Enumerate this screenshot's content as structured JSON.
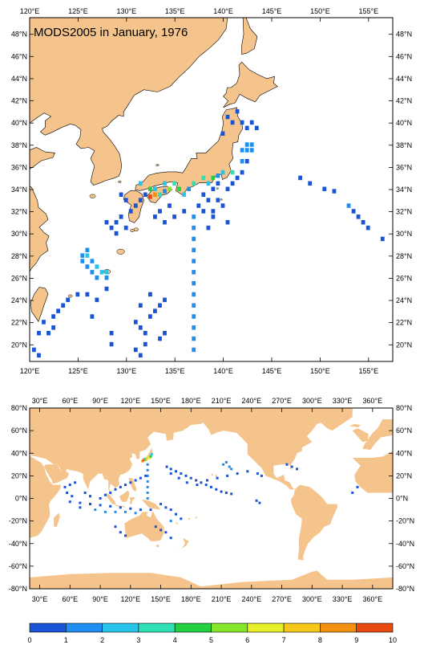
{
  "colors": {
    "land": "#f4c48c",
    "ocean": "#ffffff",
    "frame": "#000000",
    "scale": [
      "#1a54d6",
      "#1e8ff0",
      "#26c4ea",
      "#2ee0b4",
      "#22d040",
      "#86e62a",
      "#e8f02c",
      "#f6c81a",
      "#f49010",
      "#e84a10"
    ]
  },
  "title": "MODS2005 in January, 1976",
  "regional_map": {
    "lon_ticks": [
      "120°E",
      "125°E",
      "130°E",
      "135°E",
      "140°E",
      "145°E",
      "150°E",
      "155°E"
    ],
    "lat_ticks": [
      "48°N",
      "46°N",
      "44°N",
      "42°N",
      "40°N",
      "38°N",
      "36°N",
      "34°N",
      "32°N",
      "30°N",
      "28°N",
      "26°N",
      "24°N",
      "22°N",
      "20°N"
    ],
    "lon_values": [
      120,
      125,
      130,
      135,
      140,
      145,
      150,
      155
    ],
    "lat_values": [
      48,
      46,
      44,
      42,
      40,
      38,
      36,
      34,
      32,
      30,
      28,
      26,
      24,
      22,
      20
    ],
    "lon_range": [
      120,
      157.5
    ],
    "lat_range": [
      18.5,
      49.5
    ]
  },
  "global_map": {
    "lon_ticks": [
      "30°E",
      "60°E",
      "90°E",
      "120°E",
      "150°E",
      "180°E",
      "210°E",
      "240°E",
      "270°E",
      "300°E",
      "330°E",
      "360°E"
    ],
    "lat_ticks": [
      "80°N",
      "60°N",
      "40°N",
      "20°N",
      "0°N",
      "-20°N",
      "-40°N",
      "-60°N",
      "-80°N"
    ],
    "lon_values": [
      30,
      60,
      90,
      120,
      150,
      180,
      210,
      240,
      270,
      300,
      330,
      360
    ],
    "lat_values": [
      80,
      60,
      40,
      20,
      0,
      -20,
      -40,
      -60,
      -80
    ],
    "lon_range": [
      20,
      380
    ],
    "lat_range": [
      -80,
      80
    ]
  },
  "colorbar": {
    "labels": [
      "0",
      "1",
      "2",
      "3",
      "4",
      "5",
      "6",
      "7",
      "8",
      "9",
      "10"
    ],
    "values": [
      0,
      1,
      2,
      3,
      4,
      5,
      6,
      7,
      8,
      9,
      10
    ]
  },
  "observations_regional": [
    [
      137,
      19.5,
      2
    ],
    [
      137,
      20.5,
      2
    ],
    [
      137,
      21.5,
      2
    ],
    [
      137,
      22.5,
      2
    ],
    [
      137,
      23.5,
      2
    ],
    [
      137,
      24.5,
      2
    ],
    [
      137,
      25.5,
      2
    ],
    [
      137,
      26.5,
      2
    ],
    [
      137,
      27.5,
      2
    ],
    [
      137,
      28.5,
      2
    ],
    [
      137,
      29.5,
      2
    ],
    [
      137,
      30.5,
      2
    ],
    [
      137,
      31.5,
      2
    ],
    [
      153,
      32.5,
      2
    ],
    [
      148,
      35,
      1
    ],
    [
      149,
      34.5,
      1
    ],
    [
      150.5,
      34,
      1
    ],
    [
      151.5,
      33.8,
      1
    ],
    [
      153.5,
      32,
      1
    ],
    [
      154,
      31.5,
      1
    ],
    [
      154.5,
      31,
      1
    ],
    [
      155,
      30.5,
      1
    ],
    [
      156.5,
      29.5,
      1
    ],
    [
      140.5,
      40.5,
      1
    ],
    [
      141,
      40,
      1
    ],
    [
      140,
      39,
      1
    ],
    [
      141.5,
      41,
      1
    ],
    [
      142,
      40,
      1
    ],
    [
      142.5,
      39.5,
      1
    ],
    [
      143,
      40,
      1
    ],
    [
      143.5,
      39.5,
      1
    ],
    [
      142.5,
      38,
      2
    ],
    [
      143,
      38,
      2
    ],
    [
      142,
      37.5,
      2
    ],
    [
      142.5,
      37.5,
      2
    ],
    [
      143,
      37.5,
      2
    ],
    [
      142,
      36.5,
      2
    ],
    [
      142.5,
      36.5,
      1
    ],
    [
      142,
      35.5,
      1
    ],
    [
      141.5,
      35,
      1
    ],
    [
      141,
      34.5,
      1
    ],
    [
      140.5,
      34,
      1
    ],
    [
      139.5,
      34.5,
      1
    ],
    [
      139,
      34,
      1
    ],
    [
      138,
      33.5,
      1
    ],
    [
      138.5,
      33,
      1
    ],
    [
      139.5,
      33,
      1
    ],
    [
      140,
      32.5,
      1
    ],
    [
      139,
      32,
      1
    ],
    [
      138,
      32,
      1
    ],
    [
      137.5,
      32.5,
      1
    ],
    [
      136,
      32,
      1
    ],
    [
      135,
      31.5,
      1
    ],
    [
      134.5,
      32.5,
      1
    ],
    [
      133.5,
      32,
      1
    ],
    [
      133,
      31.5,
      1
    ],
    [
      134,
      31,
      1
    ],
    [
      139,
      31.5,
      1
    ],
    [
      140.5,
      31,
      1
    ],
    [
      138.5,
      30.5,
      1
    ],
    [
      132,
      33.5,
      1
    ],
    [
      131.5,
      33,
      1
    ],
    [
      131,
      32.5,
      1
    ],
    [
      130.5,
      32,
      1
    ],
    [
      129.5,
      31.5,
      1
    ],
    [
      129,
      31,
      1
    ],
    [
      130,
      30.5,
      1
    ],
    [
      129,
      30,
      1
    ],
    [
      128.5,
      30.5,
      1
    ],
    [
      128,
      31,
      1
    ],
    [
      129.5,
      33.5,
      1
    ],
    [
      130,
      33,
      1
    ],
    [
      134,
      34.5,
      3
    ],
    [
      135,
      34.5,
      4
    ],
    [
      133,
      34,
      3
    ],
    [
      132.5,
      34,
      5
    ],
    [
      133.5,
      33.5,
      4
    ],
    [
      134.5,
      34,
      6
    ],
    [
      135.5,
      34,
      5
    ],
    [
      136,
      33.5,
      3
    ],
    [
      137,
      34.5,
      4
    ],
    [
      138,
      35,
      4
    ],
    [
      139,
      35,
      5
    ],
    [
      140,
      35.5,
      3
    ],
    [
      141,
      35.5,
      4
    ],
    [
      136.5,
      34,
      2
    ],
    [
      133,
      33.5,
      9
    ],
    [
      132.5,
      33.3,
      10
    ],
    [
      134,
      33.8,
      2
    ],
    [
      131.5,
      34.5,
      3
    ],
    [
      138.5,
      34.5,
      3
    ],
    [
      139.5,
      35.2,
      2
    ],
    [
      126,
      28,
      3
    ],
    [
      126.5,
      27.5,
      2
    ],
    [
      127,
      27,
      3
    ],
    [
      127.5,
      26.5,
      3
    ],
    [
      126,
      27,
      2
    ],
    [
      126.5,
      26.5,
      2
    ],
    [
      127,
      26,
      2
    ],
    [
      128,
      26.5,
      3
    ],
    [
      128,
      26,
      2
    ],
    [
      125.5,
      27.5,
      2
    ],
    [
      125.5,
      28,
      2
    ],
    [
      126,
      28.5,
      2
    ],
    [
      124,
      24,
      1
    ],
    [
      123.5,
      23.5,
      1
    ],
    [
      123,
      23,
      1
    ],
    [
      122.5,
      22.5,
      1
    ],
    [
      121.5,
      22,
      1
    ],
    [
      121,
      21,
      1
    ],
    [
      122,
      21,
      1
    ],
    [
      125,
      24.5,
      1
    ],
    [
      126,
      24.5,
      1
    ],
    [
      127,
      24,
      1
    ],
    [
      128,
      25,
      1
    ],
    [
      126.5,
      22.5,
      1
    ],
    [
      128.5,
      21,
      1
    ],
    [
      128.5,
      20,
      1
    ],
    [
      120.5,
      19.5,
      1
    ],
    [
      121,
      19,
      1
    ],
    [
      122.5,
      21.5,
      1
    ],
    [
      131,
      22,
      1
    ],
    [
      131.5,
      21.5,
      1
    ],
    [
      132,
      21,
      1
    ],
    [
      132.5,
      22.5,
      1
    ],
    [
      133,
      23,
      1
    ],
    [
      133.5,
      23.5,
      1
    ],
    [
      134,
      24,
      1
    ],
    [
      132.5,
      24.5,
      1
    ],
    [
      131.5,
      23.5,
      1
    ],
    [
      131,
      19.5,
      1
    ],
    [
      131.5,
      19,
      1
    ],
    [
      132,
      20,
      1
    ],
    [
      133.5,
      20.5,
      1
    ],
    [
      134,
      21,
      1
    ]
  ],
  "observations_global": [
    [
      137,
      0,
      2
    ],
    [
      137,
      5,
      2
    ],
    [
      137,
      10,
      2
    ],
    [
      137,
      15,
      2
    ],
    [
      137,
      20,
      2
    ],
    [
      137,
      25,
      2
    ],
    [
      137,
      30,
      2
    ],
    [
      135,
      34,
      6
    ],
    [
      132,
      33,
      9
    ],
    [
      136,
      35,
      8
    ],
    [
      138,
      36,
      7
    ],
    [
      140,
      37,
      5
    ],
    [
      141,
      39,
      3
    ],
    [
      133,
      34,
      10
    ],
    [
      134,
      35,
      4
    ],
    [
      156,
      28,
      1
    ],
    [
      160,
      26,
      1
    ],
    [
      165,
      24,
      1
    ],
    [
      170,
      22,
      1
    ],
    [
      175,
      20,
      1
    ],
    [
      180,
      18,
      1
    ],
    [
      185,
      16,
      1
    ],
    [
      190,
      14,
      1
    ],
    [
      195,
      12,
      1
    ],
    [
      200,
      10,
      1
    ],
    [
      205,
      8,
      1
    ],
    [
      210,
      6,
      1
    ],
    [
      215,
      5,
      1
    ],
    [
      220,
      4,
      1
    ],
    [
      160,
      22,
      1
    ],
    [
      168,
      18,
      1
    ],
    [
      176,
      14,
      1
    ],
    [
      186,
      12,
      1
    ],
    [
      196,
      16,
      1
    ],
    [
      206,
      18,
      1
    ],
    [
      216,
      20,
      1
    ],
    [
      226,
      22,
      1
    ],
    [
      236,
      24,
      1
    ],
    [
      246,
      22,
      1
    ],
    [
      250,
      20,
      1
    ],
    [
      212,
      30,
      2
    ],
    [
      215,
      32,
      2
    ],
    [
      218,
      28,
      2
    ],
    [
      220,
      26,
      2
    ],
    [
      245,
      -2,
      1
    ],
    [
      248,
      -4,
      1
    ],
    [
      60,
      -3,
      1
    ],
    [
      70,
      -4,
      1
    ],
    [
      80,
      -5,
      1
    ],
    [
      90,
      -6,
      1
    ],
    [
      100,
      -7,
      1
    ],
    [
      110,
      -8,
      1
    ],
    [
      120,
      -9,
      1
    ],
    [
      130,
      -10,
      1
    ],
    [
      140,
      -10,
      1
    ],
    [
      85,
      -10,
      2
    ],
    [
      95,
      -12,
      2
    ],
    [
      105,
      -12,
      2
    ],
    [
      115,
      -12,
      2
    ],
    [
      125,
      -13,
      2
    ],
    [
      70,
      -8,
      1
    ],
    [
      55,
      10,
      1
    ],
    [
      60,
      12,
      1
    ],
    [
      65,
      14,
      1
    ],
    [
      57,
      5,
      1
    ],
    [
      62,
      2,
      1
    ],
    [
      75,
      5,
      1
    ],
    [
      80,
      2,
      1
    ],
    [
      90,
      0,
      1
    ],
    [
      95,
      3,
      1
    ],
    [
      100,
      5,
      1
    ],
    [
      105,
      8,
      1
    ],
    [
      110,
      10,
      1
    ],
    [
      115,
      12,
      1
    ],
    [
      120,
      14,
      1
    ],
    [
      125,
      16,
      1
    ],
    [
      130,
      18,
      1
    ],
    [
      135,
      20,
      1
    ],
    [
      150,
      -5,
      1
    ],
    [
      155,
      -8,
      1
    ],
    [
      160,
      -10,
      1
    ],
    [
      165,
      -14,
      1
    ],
    [
      170,
      -18,
      1
    ],
    [
      160,
      -20,
      2
    ],
    [
      145,
      -25,
      1
    ],
    [
      150,
      -28,
      1
    ],
    [
      155,
      -30,
      1
    ],
    [
      160,
      -35,
      1
    ],
    [
      110,
      -30,
      1
    ],
    [
      115,
      -33,
      1
    ],
    [
      105,
      -25,
      1
    ],
    [
      275,
      30,
      1
    ],
    [
      280,
      28,
      1
    ],
    [
      285,
      26,
      1
    ],
    [
      345,
      10,
      1
    ],
    [
      340,
      5,
      1
    ]
  ]
}
